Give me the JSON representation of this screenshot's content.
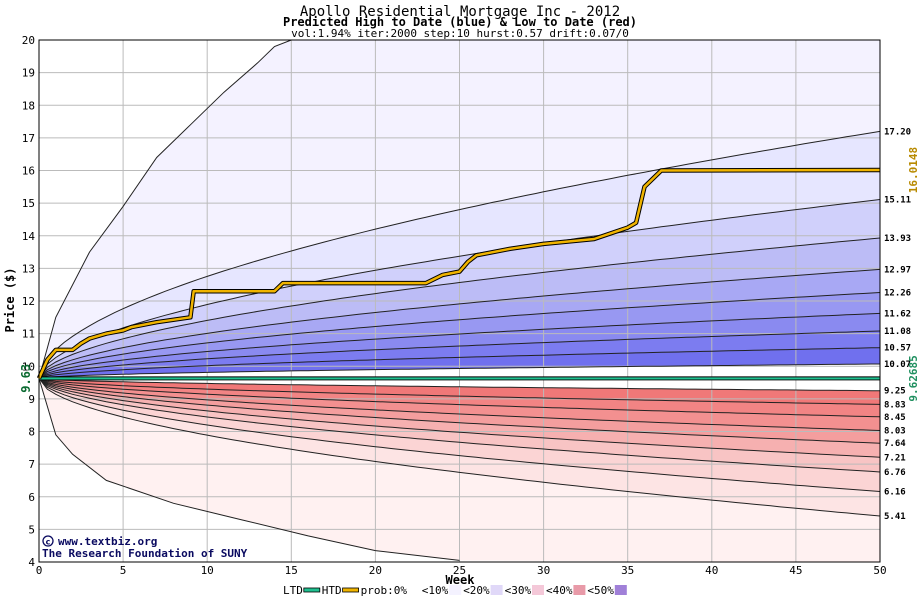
{
  "chart_data": {
    "type": "area",
    "title": "Apollo Residential Mortgage Inc - 2012",
    "subtitle": "Predicted High to Date (blue) &  Low to Date (red)",
    "params": "vol:1.94% iter:2000 step:10 hurst:0.57 drift:0.07/0",
    "xlabel": "Week",
    "ylabel": "Price ($)",
    "xlim": [
      0,
      50
    ],
    "ylim": [
      4,
      20
    ],
    "xticks": [
      "0",
      "5",
      "10",
      "15",
      "20",
      "25",
      "30",
      "35",
      "40",
      "45",
      "50"
    ],
    "yticks": [
      "4",
      "5",
      "6",
      "7",
      "8",
      "9",
      "10",
      "11",
      "12",
      "13",
      "14",
      "15",
      "16",
      "17",
      "18",
      "19",
      "20"
    ],
    "start_price": 9.63,
    "start_label": "9.63",
    "ltd_label": "9.62685",
    "htd_label": "16.0148",
    "upper_quantiles": [
      {
        "label": "17.20",
        "end": 17.2
      },
      {
        "label": "15.11",
        "end": 15.11
      },
      {
        "label": "13.93",
        "end": 13.93
      },
      {
        "label": "12.97",
        "end": 12.97
      },
      {
        "label": "12.26",
        "end": 12.26
      },
      {
        "label": "11.62",
        "end": 11.62
      },
      {
        "label": "11.08",
        "end": 11.08
      },
      {
        "label": "10.57",
        "end": 10.57
      },
      {
        "label": "10.07",
        "end": 10.07
      }
    ],
    "lower_quantiles": [
      {
        "label": "9.25",
        "end": 9.25
      },
      {
        "label": "8.83",
        "end": 8.83
      },
      {
        "label": "8.45",
        "end": 8.45
      },
      {
        "label": "8.03",
        "end": 8.03
      },
      {
        "label": "7.64",
        "end": 7.64
      },
      {
        "label": "7.21",
        "end": 7.21
      },
      {
        "label": "6.76",
        "end": 6.76
      },
      {
        "label": "6.16",
        "end": 6.16
      },
      {
        "label": "5.41",
        "end": 5.41
      }
    ],
    "upper_extreme": {
      "points": [
        [
          0,
          9.63
        ],
        [
          1,
          11.5
        ],
        [
          3,
          13.5
        ],
        [
          5,
          14.9
        ],
        [
          7,
          16.4
        ],
        [
          9,
          17.4
        ],
        [
          11,
          18.4
        ],
        [
          13,
          19.3
        ],
        [
          14,
          19.8
        ],
        [
          15,
          20
        ]
      ]
    },
    "lower_extreme": {
      "points": [
        [
          0,
          9.63
        ],
        [
          1,
          7.9
        ],
        [
          2,
          7.3
        ],
        [
          4,
          6.5
        ],
        [
          8,
          5.8
        ],
        [
          12,
          5.3
        ],
        [
          16,
          4.8
        ],
        [
          20,
          4.35
        ],
        [
          25,
          4.05
        ]
      ]
    },
    "htd_series": [
      [
        0,
        9.63
      ],
      [
        0.5,
        10.2
      ],
      [
        1,
        10.5
      ],
      [
        2,
        10.5
      ],
      [
        2.5,
        10.7
      ],
      [
        3,
        10.85
      ],
      [
        4,
        11.0
      ],
      [
        5,
        11.1
      ],
      [
        5.5,
        11.2
      ],
      [
        7,
        11.35
      ],
      [
        9,
        11.5
      ],
      [
        9.2,
        12.3
      ],
      [
        14,
        12.3
      ],
      [
        14.5,
        12.55
      ],
      [
        23,
        12.55
      ],
      [
        24,
        12.8
      ],
      [
        25,
        12.9
      ],
      [
        25.5,
        13.2
      ],
      [
        26,
        13.4
      ],
      [
        28,
        13.6
      ],
      [
        30,
        13.75
      ],
      [
        33,
        13.9
      ],
      [
        35,
        14.25
      ],
      [
        35.5,
        14.4
      ],
      [
        36,
        15.5
      ],
      [
        37,
        16.0
      ],
      [
        50,
        16.0148
      ]
    ],
    "ltd_value": 9.62685,
    "colors": {
      "upper_fills": [
        "#f4f2ff",
        "#e6e6ff",
        "#d0d0fb",
        "#bcbcf6",
        "#a8a8f4",
        "#9898f2",
        "#8a8af0",
        "#7c7cf0",
        "#7070ee"
      ],
      "lower_fills": [
        "#fff1f1",
        "#fde4e4",
        "#fbd4d4",
        "#f8c4c4",
        "#f6b0b0",
        "#f49e9e",
        "#f39090",
        "#f28484",
        "#f07878"
      ],
      "htd": "#f0b400",
      "ltd": "#20c090",
      "htd_label": "#b88a00",
      "ltd_label": "#209060"
    },
    "grid": true
  },
  "legend": {
    "items": [
      {
        "label": "LTD",
        "color": "#20c090",
        "kind": "line"
      },
      {
        "label": "HTD",
        "color": "#f0b400",
        "kind": "line"
      },
      {
        "label": "prob:0%",
        "color": "#ffffff",
        "kind": "box"
      },
      {
        "label": "<10%",
        "color": "#f4f2ff",
        "kind": "box"
      },
      {
        "label": "<20%",
        "color": "#e0d8f8",
        "kind": "box"
      },
      {
        "label": "<30%",
        "color": "#f4c8d8",
        "kind": "box"
      },
      {
        "label": "<40%",
        "color": "#e89aa8",
        "kind": "box"
      },
      {
        "label": "<50%",
        "color": "#a080d8",
        "kind": "box"
      }
    ]
  },
  "credit": {
    "line1": "www.textbiz.org",
    "line2": "The Research Foundation of SUNY"
  }
}
